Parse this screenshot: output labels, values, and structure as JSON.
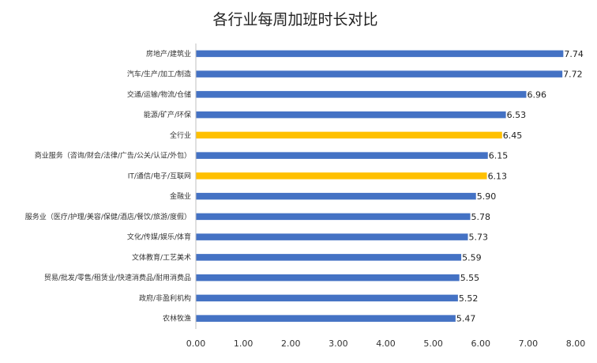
{
  "chart_data": {
    "type": "bar",
    "orientation": "horizontal",
    "title": "各行业每周加班时长对比",
    "xlabel": "",
    "ylabel": "",
    "xlim": [
      0,
      8
    ],
    "xticks": [
      "0.00",
      "1.00",
      "2.00",
      "3.00",
      "4.00",
      "5.00",
      "6.00",
      "7.00",
      "8.00"
    ],
    "grid": false,
    "legend": "none",
    "colors": {
      "default": "#4472C4",
      "highlight": "#FFC000"
    },
    "categories": [
      "房地产/建筑业",
      "汽车/生产/加工/制造",
      "交通/运输/物流/仓储",
      "能源/矿产/环保",
      "全行业",
      "商业服务（咨询/财会/法律/广告/公关/认证/外包）",
      "IT/通信/电子/互联网",
      "金融业",
      "服务业（医疗/护理/美容/保健/酒店/餐饮/旅游/度假）",
      "文化/传媒/娱乐/体育",
      "文体教育/工艺美术",
      "贸易/批发/零售/租赁业/快速消费品/耐用消费品",
      "政府/非盈利机构",
      "农林牧渔"
    ],
    "values": [
      7.74,
      7.72,
      6.96,
      6.53,
      6.45,
      6.15,
      6.13,
      5.9,
      5.78,
      5.73,
      5.59,
      5.55,
      5.52,
      5.47
    ],
    "value_labels": [
      "7.74",
      "7.72",
      "6.96",
      "6.53",
      "6.45",
      "6.15",
      "6.13",
      "5.90",
      "5.78",
      "5.73",
      "5.59",
      "5.55",
      "5.52",
      "5.47"
    ],
    "highlighted": [
      "全行业",
      "IT/通信/电子/互联网"
    ]
  }
}
